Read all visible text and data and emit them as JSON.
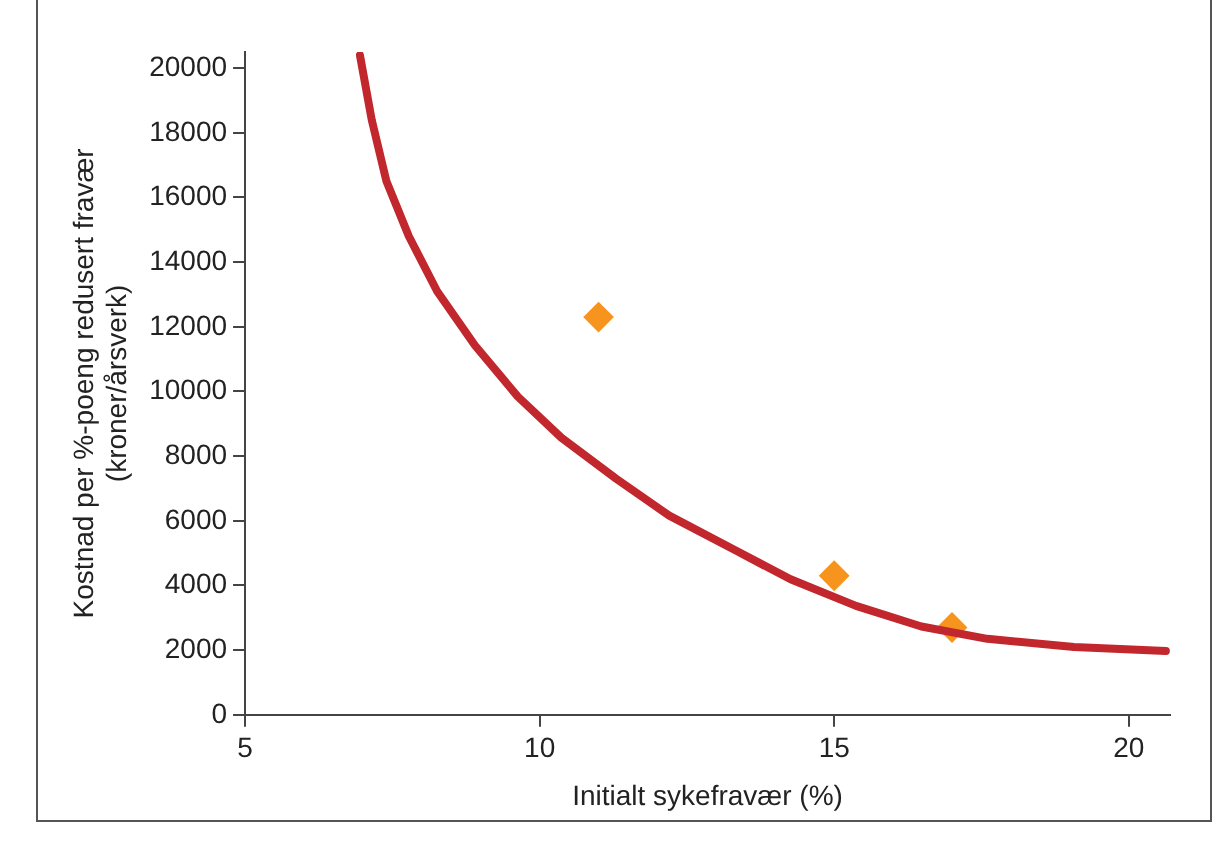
{
  "chart_data": {
    "type": "scatter",
    "xlabel": "Initialt sykefravær (%)",
    "ylabel": "Kostnad per %-poeng redusert fravær\n(kroner/årsverk)",
    "xlim": [
      5,
      20.7
    ],
    "ylim": [
      0,
      20500
    ],
    "xticks": [
      5,
      10,
      15,
      20
    ],
    "yticks": [
      0,
      2000,
      4000,
      6000,
      8000,
      10000,
      12000,
      14000,
      16000,
      18000,
      20000
    ],
    "grid": false,
    "legend": false,
    "series": [
      {
        "type": "line",
        "color": "#c1272d",
        "marker": "none",
        "line_style": "solid",
        "x": [
          6.95,
          7.15,
          7.4,
          7.78,
          8.26,
          8.9,
          9.63,
          10.37,
          11.3,
          12.2,
          13.33,
          14.26,
          15.37,
          16.48,
          17.6,
          19.07,
          20.63
        ],
        "values": [
          20400,
          18400,
          16500,
          14800,
          13100,
          11430,
          9840,
          8570,
          7300,
          6160,
          5080,
          4190,
          3370,
          2730,
          2350,
          2100,
          1970
        ]
      },
      {
        "type": "scatter",
        "color": "#f7941d",
        "marker": "diamond",
        "x": [
          11,
          15,
          17
        ],
        "values": [
          12300,
          4300,
          2700
        ]
      }
    ]
  }
}
